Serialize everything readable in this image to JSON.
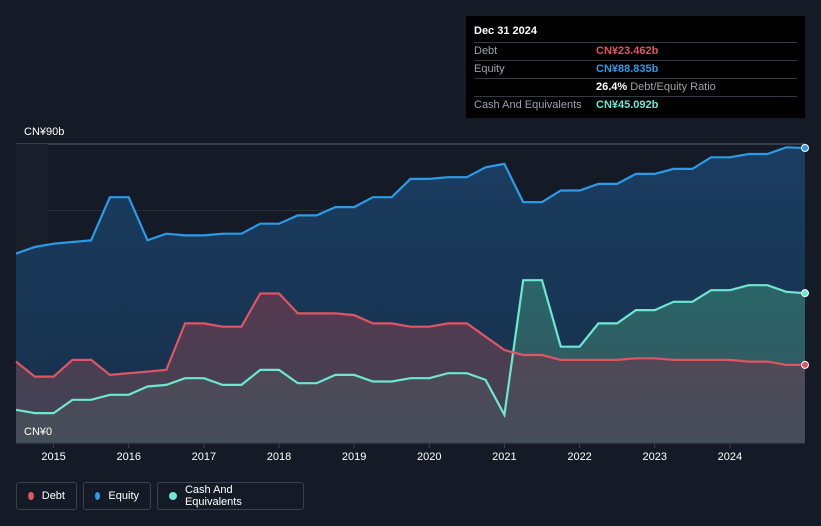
{
  "tooltip": {
    "date": "Dec 31 2024",
    "rows": [
      {
        "label": "Debt",
        "value": "CN¥23.462b",
        "color": "#e05562"
      },
      {
        "label": "Equity",
        "value": "CN¥88.835b",
        "color": "#2d9ae6"
      },
      {
        "label": "",
        "value": "26.4%",
        "suffix": "Debt/Equity Ratio",
        "color": "#ffffff"
      },
      {
        "label": "Cash And Equivalents",
        "value": "CN¥45.092b",
        "color": "#6ee6d2"
      }
    ]
  },
  "legend": [
    {
      "label": "Debt",
      "color": "#e05562"
    },
    {
      "label": "Equity",
      "color": "#2d9ae6"
    },
    {
      "label": "Cash And Equivalents",
      "color": "#6ee6d2"
    }
  ],
  "chart_data": {
    "type": "area",
    "y_axis_labels": [
      "CN¥90b",
      "CN¥0"
    ],
    "ylim": [
      0,
      90
    ],
    "xlim": [
      2014.5,
      2025.0
    ],
    "x_tick_labels": [
      "2015",
      "2016",
      "2017",
      "2018",
      "2019",
      "2020",
      "2021",
      "2022",
      "2023",
      "2024"
    ],
    "x_ticks": [
      2015,
      2016,
      2017,
      2018,
      2019,
      2020,
      2021,
      2022,
      2023,
      2024
    ],
    "grid": true,
    "legend_position": "bottom-left",
    "series": [
      {
        "name": "Equity",
        "color": "#2d9ae6",
        "x": [
          2014.5,
          2014.75,
          2015.0,
          2015.25,
          2015.5,
          2015.75,
          2016.0,
          2016.25,
          2016.5,
          2016.75,
          2017.0,
          2017.25,
          2017.5,
          2017.75,
          2018.0,
          2018.25,
          2018.5,
          2018.75,
          2019.0,
          2019.25,
          2019.5,
          2019.75,
          2020.0,
          2020.25,
          2020.5,
          2020.75,
          2021.0,
          2021.25,
          2021.5,
          2021.75,
          2022.0,
          2022.25,
          2022.5,
          2022.75,
          2023.0,
          2023.25,
          2023.5,
          2023.75,
          2024.0,
          2024.25,
          2024.5,
          2024.75,
          2025.0
        ],
        "values": [
          57,
          59,
          60,
          60.5,
          61,
          74,
          74,
          61,
          63,
          62.5,
          62.5,
          63,
          63,
          66,
          66,
          68.5,
          68.5,
          71,
          71,
          74,
          74,
          79.5,
          79.5,
          80,
          80,
          83,
          84,
          72.5,
          72.5,
          76,
          76,
          78,
          78,
          81,
          81,
          82.5,
          82.5,
          86,
          86,
          87,
          87,
          89,
          88.8
        ]
      },
      {
        "name": "Cash And Equivalents",
        "color": "#6ee6d2",
        "x": [
          2014.5,
          2014.75,
          2015.0,
          2015.25,
          2015.5,
          2015.75,
          2016.0,
          2016.25,
          2016.5,
          2016.75,
          2017.0,
          2017.25,
          2017.5,
          2017.75,
          2018.0,
          2018.25,
          2018.5,
          2018.75,
          2019.0,
          2019.25,
          2019.5,
          2019.75,
          2020.0,
          2020.25,
          2020.5,
          2020.75,
          2021.0,
          2021.25,
          2021.5,
          2021.75,
          2022.0,
          2022.25,
          2022.5,
          2022.75,
          2023.0,
          2023.25,
          2023.5,
          2023.75,
          2024.0,
          2024.25,
          2024.5,
          2024.75,
          2025.0
        ],
        "values": [
          10,
          9,
          9,
          13,
          13,
          14.5,
          14.5,
          17,
          17.5,
          19.5,
          19.5,
          17.5,
          17.5,
          22,
          22,
          18,
          18,
          20.5,
          20.5,
          18.5,
          18.5,
          19.5,
          19.5,
          21,
          21,
          19,
          8.5,
          49,
          49,
          29,
          29,
          36,
          36,
          40,
          40,
          42.5,
          42.5,
          46,
          46,
          47.5,
          47.5,
          45.5,
          45.1
        ]
      },
      {
        "name": "Debt",
        "color": "#e05562",
        "x": [
          2014.5,
          2014.75,
          2015.0,
          2015.25,
          2015.5,
          2015.75,
          2016.0,
          2016.25,
          2016.5,
          2016.75,
          2017.0,
          2017.25,
          2017.5,
          2017.75,
          2018.0,
          2018.25,
          2018.5,
          2018.75,
          2019.0,
          2019.25,
          2019.5,
          2019.75,
          2020.0,
          2020.25,
          2020.5,
          2020.75,
          2021.0,
          2021.25,
          2021.5,
          2021.75,
          2022.0,
          2022.25,
          2022.5,
          2022.75,
          2023.0,
          2023.25,
          2023.5,
          2023.75,
          2024.0,
          2024.25,
          2024.5,
          2024.75,
          2025.0
        ],
        "values": [
          24.5,
          20,
          20,
          25,
          25,
          20.5,
          21,
          21.5,
          22,
          36,
          36,
          35,
          35,
          45,
          45,
          39,
          39,
          39,
          38.5,
          36,
          36,
          35,
          35,
          36,
          36,
          32,
          28,
          26.5,
          26.5,
          25,
          25,
          25,
          25,
          25.5,
          25.5,
          25,
          25,
          25,
          25,
          24.5,
          24.5,
          23.5,
          23.5
        ]
      }
    ]
  }
}
